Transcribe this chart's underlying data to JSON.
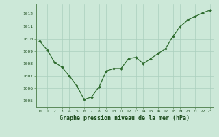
{
  "x": [
    0,
    1,
    2,
    3,
    4,
    5,
    6,
    7,
    8,
    9,
    10,
    11,
    12,
    13,
    14,
    15,
    16,
    17,
    18,
    19,
    20,
    21,
    22,
    23
  ],
  "y": [
    1009.8,
    1009.1,
    1008.1,
    1007.7,
    1007.0,
    1006.2,
    1005.1,
    1005.3,
    1006.1,
    1007.4,
    1007.6,
    1007.6,
    1008.4,
    1008.5,
    1008.0,
    1008.4,
    1008.8,
    1009.2,
    1010.2,
    1011.0,
    1011.5,
    1011.8,
    1012.1,
    1012.3
  ],
  "ylim": [
    1004.5,
    1012.8
  ],
  "yticks": [
    1005,
    1006,
    1007,
    1008,
    1009,
    1010,
    1011,
    1012
  ],
  "xticks": [
    0,
    1,
    2,
    3,
    4,
    5,
    6,
    7,
    8,
    9,
    10,
    11,
    12,
    13,
    14,
    15,
    16,
    17,
    18,
    19,
    20,
    21,
    22,
    23
  ],
  "line_color": "#2d6b2d",
  "marker_color": "#2d6b2d",
  "bg_color": "#cce8d8",
  "grid_color": "#aacfbe",
  "xlabel": "Graphe pression niveau de la mer (hPa)",
  "xlabel_color": "#1a4a1a",
  "tick_color": "#1a4a1a",
  "axis_color": "#5a8a5a"
}
